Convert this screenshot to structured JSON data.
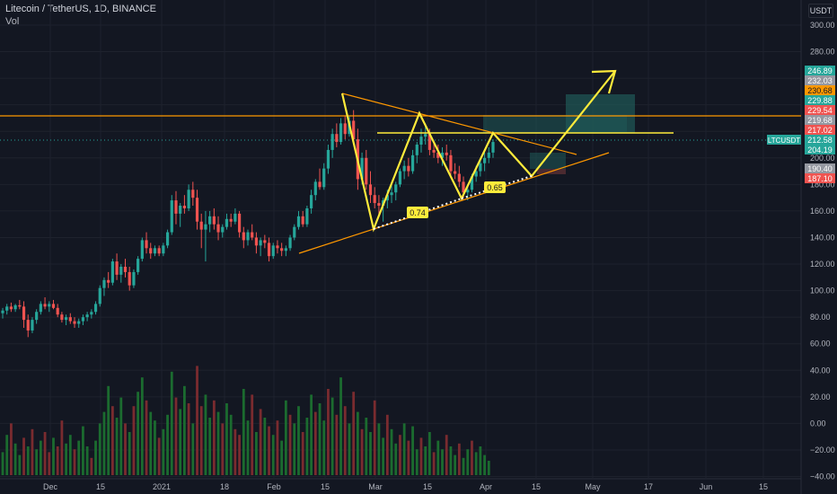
{
  "header": {
    "title": "Litecoin / TetherUS, 1D, BINANCE",
    "volume_label": "Vol",
    "currency": "USDT"
  },
  "colors": {
    "background": "#131722",
    "grid": "#1e222d",
    "up": "#26a69a",
    "down": "#ef5350",
    "vol_up": "#1b6b2f",
    "vol_down": "#7a2b2f",
    "pattern": "#ffeb3b",
    "trendline": "#ff9800",
    "target_box": "#1f5a57"
  },
  "chart_data": {
    "type": "candlestick",
    "symbol": "LTCUSDT",
    "exchange": "BINANCE",
    "interval": "1D",
    "price_axis": {
      "ticks": [
        300.0,
        280.0,
        260.0,
        240.0,
        220.0,
        200.0,
        180.0,
        160.0,
        140.0,
        120.0,
        100.0,
        80.0,
        60.0,
        40.0,
        20.0,
        0.0,
        -20.0,
        -40.0
      ],
      "tick_labels": [
        "300.00",
        "280.00",
        "260.00",
        "240.00",
        "220.00",
        "200.00",
        "180.00",
        "160.00",
        "140.00",
        "120.00",
        "100.00",
        "80.00",
        "60.00",
        "40.00",
        "20.00",
        "0.00",
        "−20.00",
        "−40.00"
      ]
    },
    "time_axis": {
      "labels": [
        "Dec",
        "15",
        "2021",
        "18",
        "Feb",
        "15",
        "Mar",
        "15",
        "Apr",
        "15",
        "May",
        "17",
        "Jun",
        "15"
      ]
    },
    "price_labels": [
      {
        "text": "246.89",
        "bg": "#26a69a",
        "fg": "#ffffff"
      },
      {
        "text": "232.03",
        "bg": "#9598a1",
        "fg": "#ffffff"
      },
      {
        "text": "230.68",
        "bg": "#ff9800",
        "fg": "#131722"
      },
      {
        "text": "229.88",
        "bg": "#26a69a",
        "fg": "#ffffff"
      },
      {
        "text": "229.54",
        "bg": "#ef5350",
        "fg": "#ffffff"
      },
      {
        "text": "219.68",
        "bg": "#9598a1",
        "fg": "#ffffff"
      },
      {
        "text": "217.02",
        "bg": "#ef5350",
        "fg": "#ffffff"
      },
      {
        "text": "212.58",
        "bg": "#26a69a",
        "fg": "#ffffff"
      },
      {
        "text": "204.19",
        "bg": "#26a69a",
        "fg": "#ffffff"
      },
      {
        "text": "190.40",
        "bg": "#9598a1",
        "fg": "#ffffff"
      },
      {
        "text": "187.10",
        "bg": "#ef5350",
        "fg": "#ffffff"
      }
    ],
    "last_price_tag": "LTCUSDT",
    "annotations": [
      "0.74",
      "0.65"
    ],
    "candles": [
      {
        "o": 83,
        "h": 87,
        "l": 79,
        "c": 85
      },
      {
        "o": 85,
        "h": 90,
        "l": 82,
        "c": 88
      },
      {
        "o": 88,
        "h": 91,
        "l": 84,
        "c": 86
      },
      {
        "o": 86,
        "h": 90,
        "l": 84,
        "c": 89
      },
      {
        "o": 89,
        "h": 93,
        "l": 86,
        "c": 88
      },
      {
        "o": 88,
        "h": 92,
        "l": 72,
        "c": 78
      },
      {
        "o": 78,
        "h": 82,
        "l": 65,
        "c": 70
      },
      {
        "o": 70,
        "h": 80,
        "l": 68,
        "c": 78
      },
      {
        "o": 78,
        "h": 86,
        "l": 75,
        "c": 84
      },
      {
        "o": 84,
        "h": 92,
        "l": 82,
        "c": 90
      },
      {
        "o": 90,
        "h": 95,
        "l": 86,
        "c": 88
      },
      {
        "o": 88,
        "h": 92,
        "l": 84,
        "c": 90
      },
      {
        "o": 90,
        "h": 93,
        "l": 86,
        "c": 87
      },
      {
        "o": 87,
        "h": 90,
        "l": 80,
        "c": 82
      },
      {
        "o": 82,
        "h": 84,
        "l": 76,
        "c": 78
      },
      {
        "o": 78,
        "h": 82,
        "l": 74,
        "c": 80
      },
      {
        "o": 80,
        "h": 83,
        "l": 75,
        "c": 77
      },
      {
        "o": 77,
        "h": 80,
        "l": 72,
        "c": 75
      },
      {
        "o": 75,
        "h": 79,
        "l": 72,
        "c": 77
      },
      {
        "o": 77,
        "h": 82,
        "l": 74,
        "c": 80
      },
      {
        "o": 80,
        "h": 84,
        "l": 77,
        "c": 82
      },
      {
        "o": 82,
        "h": 86,
        "l": 79,
        "c": 84
      },
      {
        "o": 84,
        "h": 92,
        "l": 82,
        "c": 90
      },
      {
        "o": 90,
        "h": 104,
        "l": 88,
        "c": 102
      },
      {
        "o": 102,
        "h": 110,
        "l": 96,
        "c": 108
      },
      {
        "o": 108,
        "h": 114,
        "l": 102,
        "c": 106
      },
      {
        "o": 106,
        "h": 124,
        "l": 104,
        "c": 122
      },
      {
        "o": 122,
        "h": 128,
        "l": 108,
        "c": 112
      },
      {
        "o": 112,
        "h": 120,
        "l": 106,
        "c": 118
      },
      {
        "o": 118,
        "h": 124,
        "l": 110,
        "c": 114
      },
      {
        "o": 114,
        "h": 118,
        "l": 100,
        "c": 104
      },
      {
        "o": 104,
        "h": 116,
        "l": 102,
        "c": 114
      },
      {
        "o": 114,
        "h": 126,
        "l": 112,
        "c": 124
      },
      {
        "o": 124,
        "h": 140,
        "l": 122,
        "c": 138
      },
      {
        "o": 138,
        "h": 144,
        "l": 128,
        "c": 132
      },
      {
        "o": 132,
        "h": 136,
        "l": 124,
        "c": 128
      },
      {
        "o": 128,
        "h": 134,
        "l": 126,
        "c": 132
      },
      {
        "o": 132,
        "h": 134,
        "l": 126,
        "c": 128
      },
      {
        "o": 128,
        "h": 136,
        "l": 126,
        "c": 134
      },
      {
        "o": 134,
        "h": 146,
        "l": 132,
        "c": 144
      },
      {
        "o": 144,
        "h": 172,
        "l": 142,
        "c": 168
      },
      {
        "o": 168,
        "h": 175,
        "l": 150,
        "c": 158
      },
      {
        "o": 158,
        "h": 166,
        "l": 148,
        "c": 164
      },
      {
        "o": 164,
        "h": 172,
        "l": 158,
        "c": 162
      },
      {
        "o": 162,
        "h": 180,
        "l": 160,
        "c": 176
      },
      {
        "o": 176,
        "h": 182,
        "l": 164,
        "c": 170
      },
      {
        "o": 170,
        "h": 176,
        "l": 146,
        "c": 152
      },
      {
        "o": 152,
        "h": 158,
        "l": 132,
        "c": 146
      },
      {
        "o": 146,
        "h": 160,
        "l": 122,
        "c": 150
      },
      {
        "o": 150,
        "h": 160,
        "l": 144,
        "c": 156
      },
      {
        "o": 156,
        "h": 162,
        "l": 146,
        "c": 150
      },
      {
        "o": 150,
        "h": 156,
        "l": 138,
        "c": 144
      },
      {
        "o": 144,
        "h": 150,
        "l": 140,
        "c": 148
      },
      {
        "o": 148,
        "h": 158,
        "l": 146,
        "c": 154
      },
      {
        "o": 154,
        "h": 158,
        "l": 148,
        "c": 152
      },
      {
        "o": 152,
        "h": 162,
        "l": 150,
        "c": 158
      },
      {
        "o": 158,
        "h": 160,
        "l": 140,
        "c": 144
      },
      {
        "o": 144,
        "h": 148,
        "l": 132,
        "c": 138
      },
      {
        "o": 138,
        "h": 146,
        "l": 134,
        "c": 144
      },
      {
        "o": 144,
        "h": 150,
        "l": 138,
        "c": 140
      },
      {
        "o": 140,
        "h": 144,
        "l": 128,
        "c": 134
      },
      {
        "o": 134,
        "h": 140,
        "l": 126,
        "c": 138
      },
      {
        "o": 138,
        "h": 142,
        "l": 132,
        "c": 136
      },
      {
        "o": 136,
        "h": 140,
        "l": 122,
        "c": 126
      },
      {
        "o": 126,
        "h": 136,
        "l": 124,
        "c": 134
      },
      {
        "o": 134,
        "h": 138,
        "l": 128,
        "c": 132
      },
      {
        "o": 132,
        "h": 136,
        "l": 126,
        "c": 130
      },
      {
        "o": 130,
        "h": 134,
        "l": 126,
        "c": 132
      },
      {
        "o": 132,
        "h": 142,
        "l": 130,
        "c": 140
      },
      {
        "o": 140,
        "h": 150,
        "l": 138,
        "c": 148
      },
      {
        "o": 148,
        "h": 160,
        "l": 146,
        "c": 156
      },
      {
        "o": 156,
        "h": 160,
        "l": 148,
        "c": 150
      },
      {
        "o": 150,
        "h": 164,
        "l": 148,
        "c": 162
      },
      {
        "o": 162,
        "h": 176,
        "l": 158,
        "c": 172
      },
      {
        "o": 172,
        "h": 184,
        "l": 168,
        "c": 182
      },
      {
        "o": 182,
        "h": 192,
        "l": 176,
        "c": 178
      },
      {
        "o": 178,
        "h": 196,
        "l": 176,
        "c": 192
      },
      {
        "o": 192,
        "h": 210,
        "l": 188,
        "c": 206
      },
      {
        "o": 206,
        "h": 222,
        "l": 200,
        "c": 218
      },
      {
        "o": 218,
        "h": 226,
        "l": 208,
        "c": 212
      },
      {
        "o": 212,
        "h": 230,
        "l": 210,
        "c": 226
      },
      {
        "o": 226,
        "h": 232,
        "l": 214,
        "c": 218
      },
      {
        "o": 218,
        "h": 232,
        "l": 216,
        "c": 228
      },
      {
        "o": 228,
        "h": 236,
        "l": 210,
        "c": 214
      },
      {
        "o": 214,
        "h": 222,
        "l": 176,
        "c": 184
      },
      {
        "o": 184,
        "h": 204,
        "l": 180,
        "c": 200
      },
      {
        "o": 200,
        "h": 206,
        "l": 176,
        "c": 180
      },
      {
        "o": 180,
        "h": 190,
        "l": 166,
        "c": 172
      },
      {
        "o": 172,
        "h": 178,
        "l": 162,
        "c": 166
      },
      {
        "o": 166,
        "h": 172,
        "l": 156,
        "c": 164
      },
      {
        "o": 164,
        "h": 170,
        "l": 152,
        "c": 168
      },
      {
        "o": 168,
        "h": 176,
        "l": 162,
        "c": 172
      },
      {
        "o": 172,
        "h": 180,
        "l": 166,
        "c": 174
      },
      {
        "o": 174,
        "h": 182,
        "l": 168,
        "c": 180
      },
      {
        "o": 180,
        "h": 192,
        "l": 178,
        "c": 190
      },
      {
        "o": 190,
        "h": 198,
        "l": 184,
        "c": 194
      },
      {
        "o": 194,
        "h": 200,
        "l": 186,
        "c": 190
      },
      {
        "o": 190,
        "h": 206,
        "l": 188,
        "c": 202
      },
      {
        "o": 202,
        "h": 212,
        "l": 196,
        "c": 210
      },
      {
        "o": 210,
        "h": 222,
        "l": 204,
        "c": 216
      },
      {
        "o": 216,
        "h": 226,
        "l": 210,
        "c": 218
      },
      {
        "o": 218,
        "h": 222,
        "l": 202,
        "c": 206
      },
      {
        "o": 206,
        "h": 212,
        "l": 200,
        "c": 204
      },
      {
        "o": 204,
        "h": 210,
        "l": 196,
        "c": 200
      },
      {
        "o": 200,
        "h": 208,
        "l": 194,
        "c": 204
      },
      {
        "o": 204,
        "h": 210,
        "l": 198,
        "c": 202
      },
      {
        "o": 202,
        "h": 206,
        "l": 186,
        "c": 190
      },
      {
        "o": 190,
        "h": 196,
        "l": 184,
        "c": 188
      },
      {
        "o": 188,
        "h": 194,
        "l": 178,
        "c": 182
      },
      {
        "o": 182,
        "h": 186,
        "l": 170,
        "c": 174
      },
      {
        "o": 174,
        "h": 180,
        "l": 168,
        "c": 176
      },
      {
        "o": 176,
        "h": 188,
        "l": 174,
        "c": 186
      },
      {
        "o": 186,
        "h": 194,
        "l": 182,
        "c": 190
      },
      {
        "o": 190,
        "h": 198,
        "l": 186,
        "c": 196
      },
      {
        "o": 196,
        "h": 204,
        "l": 190,
        "c": 200
      },
      {
        "o": 200,
        "h": 208,
        "l": 196,
        "c": 204
      },
      {
        "o": 204,
        "h": 214,
        "l": 200,
        "c": 212
      }
    ],
    "volumes": [
      [
        8,
        1
      ],
      [
        14,
        1
      ],
      [
        18,
        0
      ],
      [
        11,
        1
      ],
      [
        7,
        1
      ],
      [
        13,
        0
      ],
      [
        10,
        1
      ],
      [
        16,
        0
      ],
      [
        9,
        1
      ],
      [
        12,
        1
      ],
      [
        15,
        0
      ],
      [
        8,
        0
      ],
      [
        13,
        1
      ],
      [
        10,
        0
      ],
      [
        19,
        0
      ],
      [
        11,
        1
      ],
      [
        14,
        1
      ],
      [
        9,
        0
      ],
      [
        12,
        1
      ],
      [
        17,
        1
      ],
      [
        10,
        1
      ],
      [
        6,
        0
      ],
      [
        12,
        1
      ],
      [
        18,
        1
      ],
      [
        22,
        1
      ],
      [
        31,
        1
      ],
      [
        24,
        0
      ],
      [
        20,
        1
      ],
      [
        27,
        1
      ],
      [
        18,
        0
      ],
      [
        15,
        1
      ],
      [
        24,
        0
      ],
      [
        29,
        1
      ],
      [
        34,
        1
      ],
      [
        26,
        0
      ],
      [
        22,
        1
      ],
      [
        19,
        1
      ],
      [
        13,
        0
      ],
      [
        16,
        1
      ],
      [
        21,
        1
      ],
      [
        36,
        1
      ],
      [
        27,
        0
      ],
      [
        23,
        1
      ],
      [
        31,
        1
      ],
      [
        25,
        0
      ],
      [
        18,
        1
      ],
      [
        38,
        0
      ],
      [
        24,
        0
      ],
      [
        28,
        1
      ],
      [
        20,
        1
      ],
      [
        26,
        0
      ],
      [
        22,
        1
      ],
      [
        18,
        0
      ],
      [
        25,
        1
      ],
      [
        21,
        1
      ],
      [
        16,
        0
      ],
      [
        14,
        0
      ],
      [
        30,
        1
      ],
      [
        19,
        1
      ],
      [
        28,
        0
      ],
      [
        15,
        1
      ],
      [
        23,
        0
      ],
      [
        20,
        1
      ],
      [
        17,
        0
      ],
      [
        14,
        1
      ],
      [
        19,
        0
      ],
      [
        12,
        1
      ],
      [
        26,
        1
      ],
      [
        21,
        0
      ],
      [
        18,
        1
      ],
      [
        24,
        1
      ],
      [
        15,
        0
      ],
      [
        20,
        1
      ],
      [
        28,
        1
      ],
      [
        22,
        0
      ],
      [
        25,
        1
      ],
      [
        19,
        1
      ],
      [
        30,
        0
      ],
      [
        27,
        1
      ],
      [
        21,
        0
      ],
      [
        34,
        1
      ],
      [
        24,
        0
      ],
      [
        18,
        1
      ],
      [
        29,
        0
      ],
      [
        22,
        1
      ],
      [
        16,
        0
      ],
      [
        20,
        1
      ],
      [
        15,
        1
      ],
      [
        26,
        0
      ],
      [
        18,
        1
      ],
      [
        13,
        1
      ],
      [
        21,
        0
      ],
      [
        16,
        1
      ],
      [
        11,
        1
      ],
      [
        14,
        0
      ],
      [
        18,
        1
      ],
      [
        12,
        0
      ],
      [
        17,
        1
      ],
      [
        9,
        1
      ],
      [
        13,
        0
      ],
      [
        10,
        1
      ],
      [
        15,
        1
      ],
      [
        8,
        0
      ],
      [
        12,
        1
      ],
      [
        9,
        1
      ],
      [
        14,
        0
      ],
      [
        10,
        1
      ],
      [
        7,
        1
      ],
      [
        11,
        0
      ],
      [
        6,
        1
      ],
      [
        9,
        1
      ],
      [
        12,
        0
      ],
      [
        8,
        1
      ],
      [
        10,
        1
      ],
      [
        7,
        1
      ],
      [
        5,
        1
      ]
    ]
  }
}
